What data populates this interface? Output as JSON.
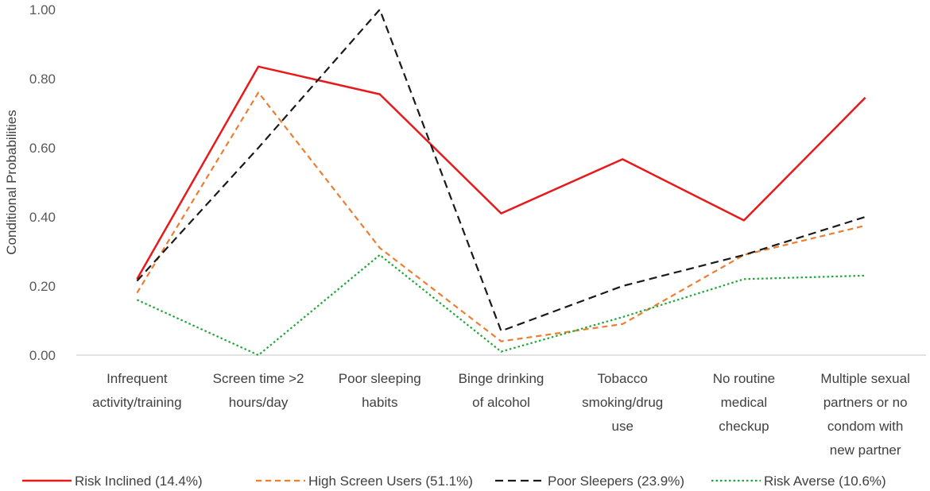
{
  "chart_data": {
    "type": "line",
    "title": "",
    "xlabel": "",
    "ylabel": "Conditional Probabilities",
    "ylim": [
      0,
      1
    ],
    "yticks": [
      0,
      0.2,
      0.4,
      0.6,
      0.8,
      1.0
    ],
    "ytick_labels": [
      "0.00",
      "0.20",
      "0.40",
      "0.60",
      "0.80",
      "1.00"
    ],
    "grid": false,
    "legend_position": "bottom",
    "categories": [
      [
        "Infrequent",
        "activity/training"
      ],
      [
        "Screen time >2",
        "hours/day"
      ],
      [
        "Poor sleeping",
        "habits"
      ],
      [
        "Binge drinking",
        "of alcohol"
      ],
      [
        "Tobacco",
        "smoking/drug",
        "use"
      ],
      [
        "No routine",
        "medical",
        "checkup"
      ],
      [
        "Multiple sexual",
        "partners or no",
        "condom with",
        "new partner"
      ]
    ],
    "series": [
      {
        "name": "Risk Inclined (14.4%)",
        "color": "#e8191b",
        "dash": "solid",
        "values": [
          0.22,
          0.835,
          0.755,
          0.41,
          0.567,
          0.39,
          0.745
        ]
      },
      {
        "name": "High Screen Users (51.1%)",
        "color": "#ed7d31",
        "dash": "dashed",
        "values": [
          0.18,
          0.76,
          0.31,
          0.04,
          0.09,
          0.29,
          0.375
        ]
      },
      {
        "name": "Poor Sleepers (23.9%)",
        "color": "#1a1a1a",
        "dash": "longdash",
        "values": [
          0.215,
          0.6,
          1.0,
          0.07,
          0.2,
          0.29,
          0.4
        ]
      },
      {
        "name": "Risk Averse (10.6%)",
        "color": "#1fa83a",
        "dash": "dotted",
        "values": [
          0.16,
          0.0,
          0.29,
          0.01,
          0.11,
          0.22,
          0.23
        ]
      }
    ]
  }
}
